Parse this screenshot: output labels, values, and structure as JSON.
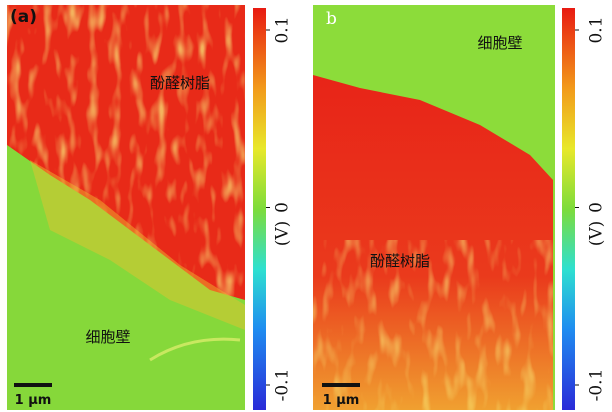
{
  "panels": [
    {
      "label": "(a)",
      "scale_bar": "1 μm",
      "regions": [
        "酚醛树脂",
        "细胞壁"
      ],
      "colorbar": {
        "ticks": [
          -0.1,
          0,
          0.1
        ],
        "unit": "(V)"
      }
    },
    {
      "label": "b",
      "scale_bar": "1 μm",
      "regions": [
        "细胞壁",
        "酚醛树脂"
      ],
      "colorbar": {
        "ticks": [
          -0.1,
          0,
          0.1
        ],
        "unit": "(V)"
      }
    }
  ]
}
